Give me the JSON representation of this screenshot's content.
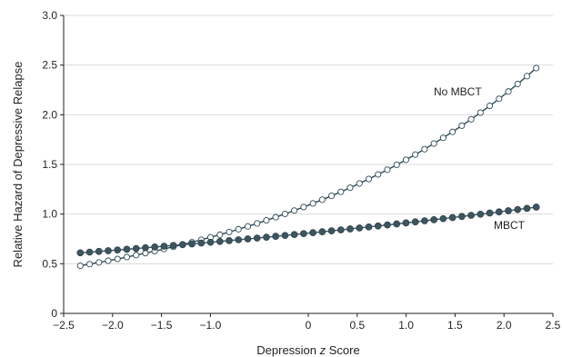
{
  "chart_data": {
    "type": "line",
    "xlabel_prefix": "Depression ",
    "xlabel_italic": "z",
    "xlabel_suffix": " Score",
    "ylabel": "Relative Hazard of Depressive Relapse",
    "xlim": [
      -2.5,
      2.5
    ],
    "ylim": [
      0,
      3.0
    ],
    "x_ticks": [
      -2.5,
      -2.0,
      -1.5,
      -1.0,
      0,
      0.5,
      1.0,
      1.5,
      2.0,
      2.5
    ],
    "x_tick_labels": [
      "−2.5",
      "−2.0",
      "−1.5",
      "−1.0",
      "0",
      "0.5",
      "1.0",
      "1.5",
      "2.0",
      "2.5"
    ],
    "y_ticks": [
      0,
      0.5,
      1.0,
      1.5,
      2.0,
      2.5,
      3.0
    ],
    "y_tick_labels": [
      "0",
      "0.5",
      "1.0",
      "1.5",
      "2.0",
      "2.5",
      "3.0"
    ],
    "grid": "horizontal",
    "series": [
      {
        "name": "No MBCT",
        "marker": "open-circle",
        "color": "#2f4a55",
        "x_start": -2.33,
        "x_end": 2.33,
        "n_points": 50,
        "y_start": 0.48,
        "y_end": 2.47
      },
      {
        "name": "MBCT",
        "marker": "filled-circle",
        "color": "#3d5561",
        "x_start": -2.33,
        "x_end": 2.33,
        "n_points": 50,
        "y_start": 0.61,
        "y_end": 1.07
      }
    ]
  }
}
